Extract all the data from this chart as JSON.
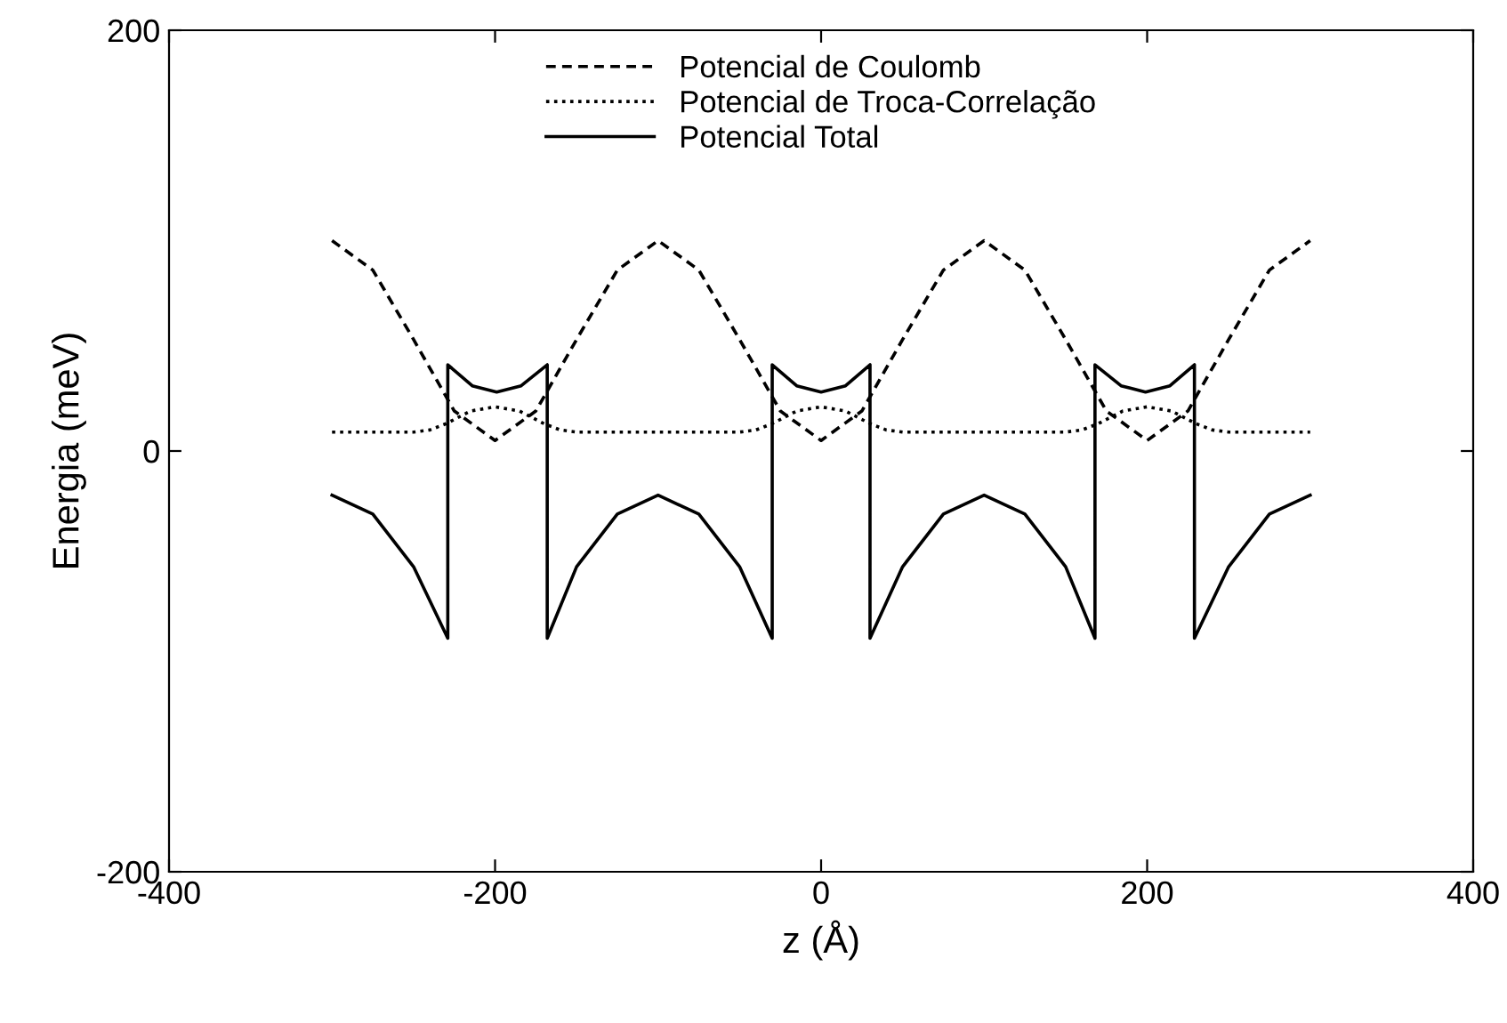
{
  "chart_data": {
    "type": "line",
    "xlabel": "z (Å)",
    "ylabel": "Energia (meV)",
    "xlim": [
      -400,
      400
    ],
    "xticks": [
      -400,
      -200,
      0,
      200,
      400
    ],
    "ylim": [
      -200,
      200
    ],
    "yticks": [
      -200,
      0,
      200
    ],
    "grid": false,
    "legend": "top",
    "marker": "none",
    "series": [
      {
        "name": "Potencial de Coulomb",
        "color": "#000000",
        "line_style": "dashed",
        "x": [
          -300,
          -275,
          -250,
          -225,
          -200,
          -175,
          -150,
          -125,
          -100,
          -75,
          -50,
          -25,
          0,
          25,
          50,
          75,
          100,
          125,
          150,
          175,
          200,
          225,
          250,
          275,
          300
        ],
        "values": [
          100,
          86,
          53,
          19,
          5,
          19,
          53,
          86,
          100,
          86,
          53,
          19,
          5,
          19,
          53,
          86,
          100,
          86,
          53,
          19,
          5,
          19,
          53,
          86,
          100
        ]
      },
      {
        "name": "Potencial de Troca-Correlação",
        "color": "#000000",
        "line_style": "dotted",
        "x": [
          -300,
          -250,
          -240,
          -230,
          -215,
          -200,
          -185,
          -170,
          -160,
          -150,
          -100,
          -50,
          -40,
          -30,
          -15,
          0,
          15,
          30,
          40,
          50,
          100,
          150,
          160,
          170,
          185,
          200,
          215,
          230,
          240,
          250,
          300
        ],
        "values": [
          9,
          9,
          10,
          13,
          19,
          21,
          19,
          13,
          10,
          9,
          9,
          9,
          10,
          13,
          19,
          21,
          19,
          13,
          10,
          9,
          9,
          9,
          10,
          13,
          19,
          21,
          19,
          13,
          10,
          9,
          9
        ]
      },
      {
        "name": "Potencial Total",
        "color": "#000000",
        "line_style": "solid",
        "x": [
          -300,
          -275,
          -250,
          -229,
          -229,
          -214,
          -199,
          -184,
          -168,
          -168,
          -150,
          -125,
          -100,
          -75,
          -50,
          -30,
          -30,
          -15,
          0,
          15,
          30,
          30,
          50,
          75,
          100,
          125,
          150,
          168,
          168,
          184,
          199,
          214,
          229,
          229,
          250,
          275,
          300
        ],
        "values": [
          -21,
          -30,
          -55,
          -89,
          41,
          31,
          28,
          31,
          41,
          -89,
          -55,
          -30,
          -21,
          -30,
          -55,
          -89,
          41,
          31,
          28,
          31,
          41,
          -89,
          -55,
          -30,
          -21,
          -30,
          -55,
          -89,
          41,
          31,
          28,
          31,
          41,
          -89,
          -55,
          -30,
          -21
        ]
      }
    ]
  }
}
